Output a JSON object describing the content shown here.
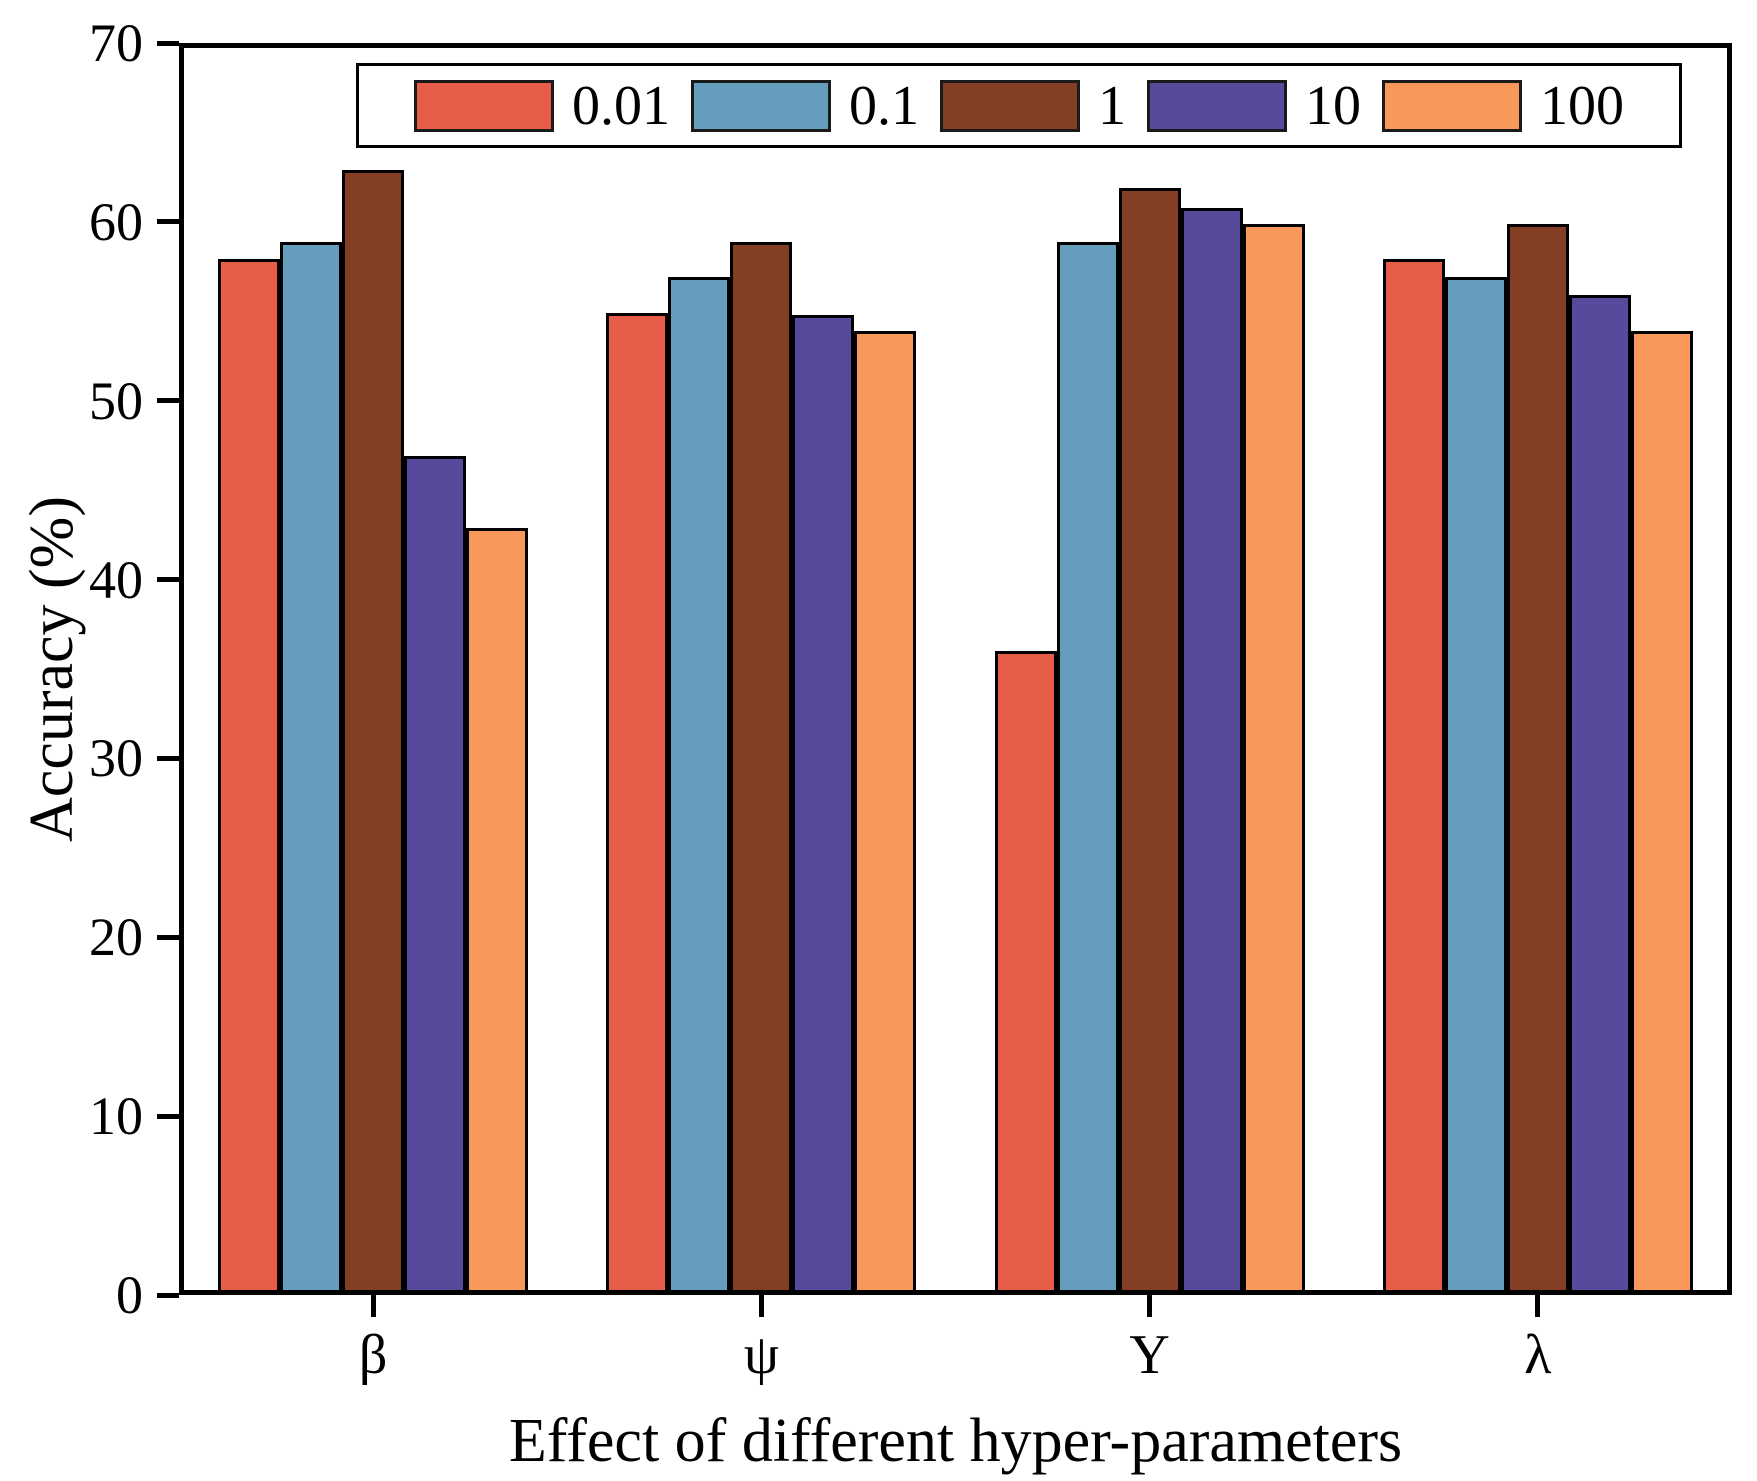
{
  "chart_data": {
    "type": "bar",
    "title": "",
    "xlabel": "Effect of different hyper-parameters",
    "ylabel": "Accuracy (%)",
    "ylim": [
      0,
      70
    ],
    "yticks": [
      0,
      10,
      20,
      30,
      40,
      50,
      60,
      70
    ],
    "categories": [
      "β",
      "ψ",
      "Υ",
      "λ"
    ],
    "grid": false,
    "legend_position": "top-center-inside",
    "bar_edge_color": "#000000",
    "axis_color": "#000000",
    "background_color": "#ffffff",
    "series": [
      {
        "name": "0.01",
        "color": "#E75D4A",
        "values": [
          57.9,
          54.9,
          36.0,
          57.9
        ]
      },
      {
        "name": "0.1",
        "color": "#669CBC",
        "values": [
          58.9,
          56.9,
          58.9,
          56.9
        ]
      },
      {
        "name": "1",
        "color": "#843E24",
        "values": [
          62.9,
          58.9,
          61.9,
          59.9
        ]
      },
      {
        "name": "10",
        "color": "#574A9C",
        "values": [
          46.9,
          54.8,
          60.8,
          55.9
        ]
      },
      {
        "name": "100",
        "color": "#F8985A",
        "values": [
          42.9,
          53.9,
          59.9,
          53.9
        ]
      }
    ]
  }
}
